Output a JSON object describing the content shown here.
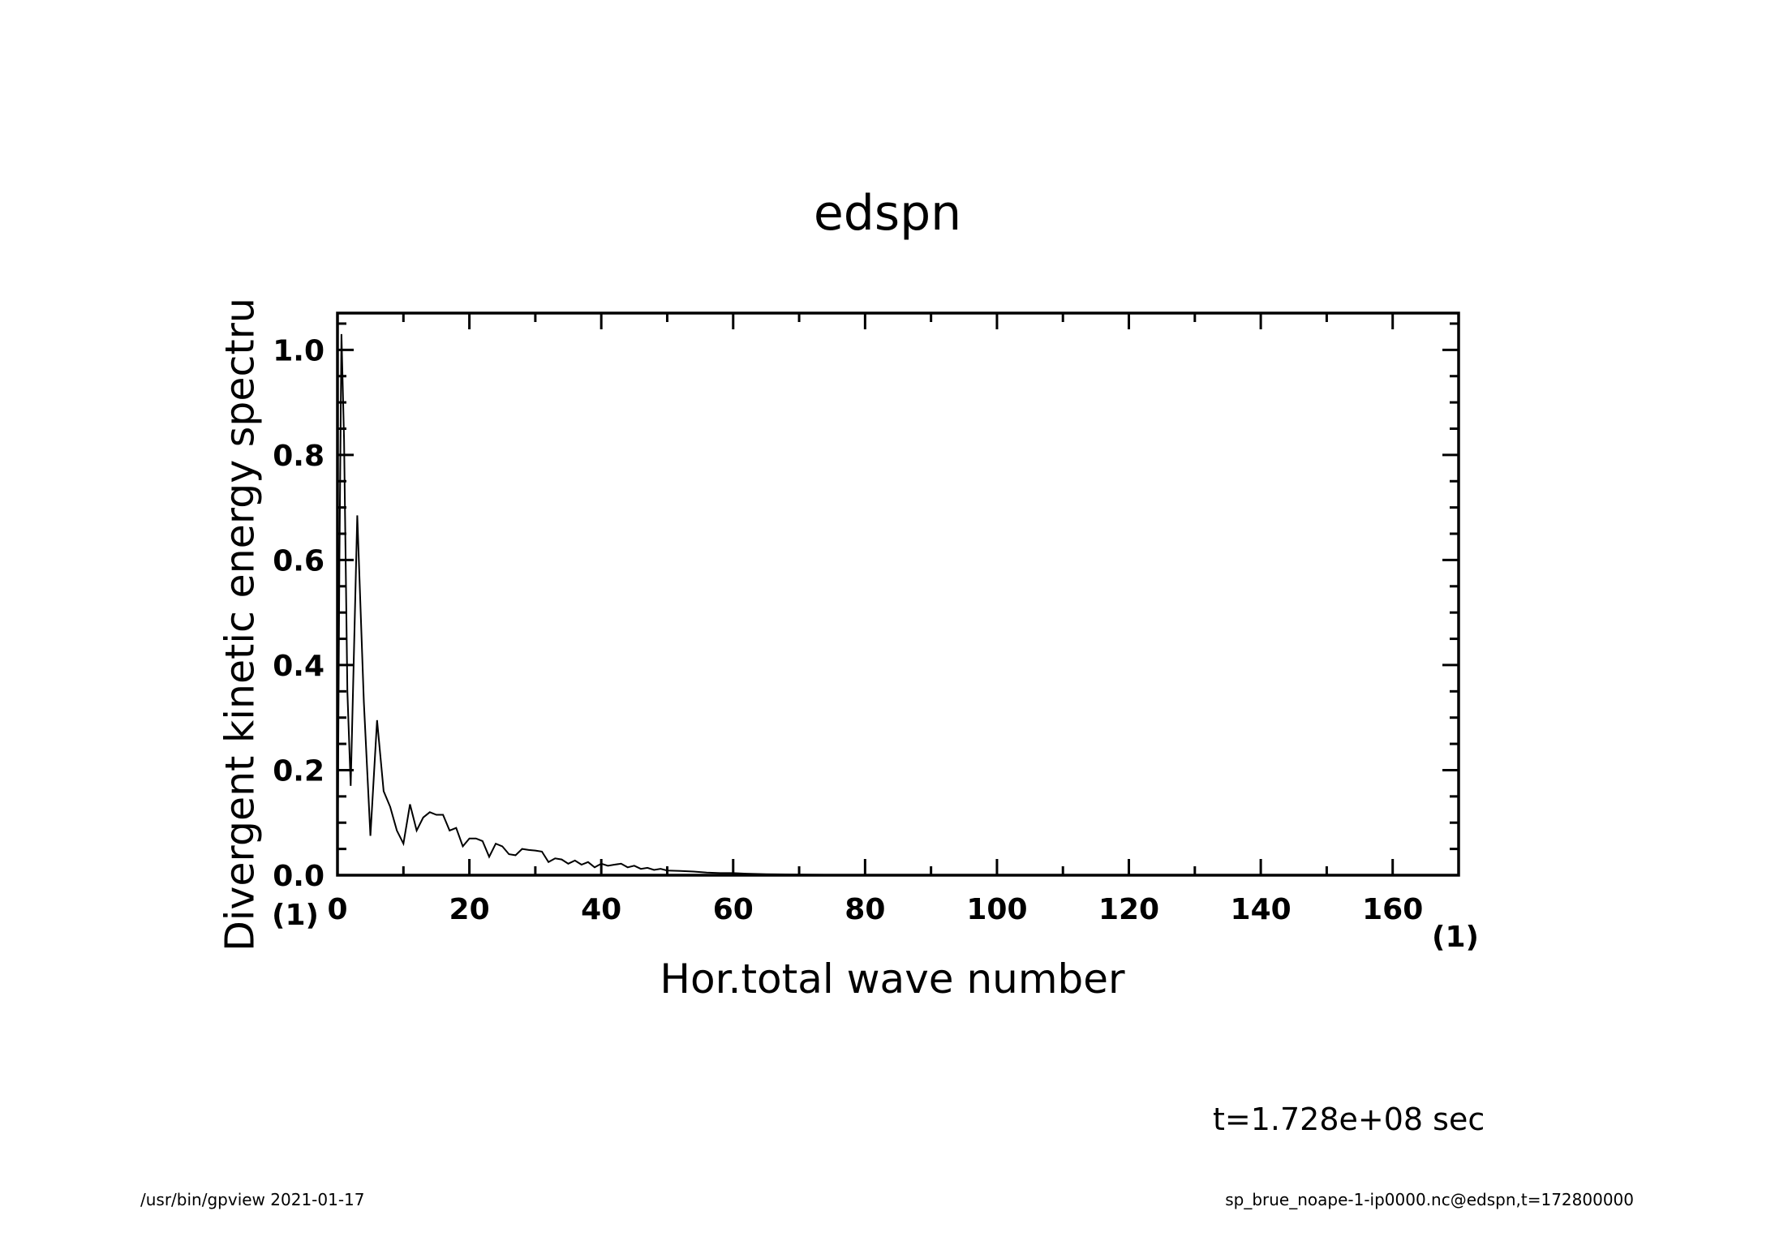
{
  "chart_data": {
    "type": "line",
    "title": "edspn",
    "xlabel": "Hor.total wave number",
    "ylabel": "Divergent kinetic energy spectru",
    "x_unit": "(1)",
    "y_unit": "(1)",
    "xlim": [
      0,
      170
    ],
    "ylim": [
      0,
      1.07
    ],
    "x_ticks": [
      0,
      20,
      40,
      60,
      80,
      100,
      120,
      140,
      160
    ],
    "x_tick_labels": [
      "0",
      "20",
      "40",
      "60",
      "80",
      "100",
      "120",
      "140",
      "160"
    ],
    "y_ticks": [
      0.0,
      0.2,
      0.4,
      0.6,
      0.8,
      1.0
    ],
    "y_tick_labels": [
      "0.0",
      "0.2",
      "0.4",
      "0.6",
      "0.8",
      "1.0"
    ],
    "grid": false,
    "line_color": "#000000",
    "x": [
      0,
      0.3,
      0.6,
      1,
      1.5,
      2,
      3,
      4,
      5,
      6,
      7,
      8,
      9,
      10,
      11,
      12,
      13,
      14,
      15,
      16,
      17,
      18,
      19,
      20,
      21,
      22,
      23,
      24,
      25,
      26,
      27,
      28,
      29,
      30,
      31,
      32,
      33,
      34,
      35,
      36,
      37,
      38,
      39,
      40,
      41,
      42,
      43,
      44,
      45,
      46,
      47,
      48,
      49,
      50,
      52,
      54,
      56,
      58,
      60,
      62,
      65,
      68,
      72,
      76,
      80,
      90,
      100,
      120,
      140,
      160,
      170
    ],
    "y": [
      0.0,
      0.6,
      1.03,
      0.83,
      0.35,
      0.17,
      0.685,
      0.33,
      0.075,
      0.295,
      0.16,
      0.13,
      0.085,
      0.06,
      0.135,
      0.085,
      0.11,
      0.12,
      0.115,
      0.115,
      0.085,
      0.09,
      0.055,
      0.07,
      0.07,
      0.065,
      0.035,
      0.06,
      0.055,
      0.04,
      0.038,
      0.05,
      0.048,
      0.047,
      0.045,
      0.025,
      0.032,
      0.03,
      0.022,
      0.028,
      0.02,
      0.025,
      0.015,
      0.022,
      0.018,
      0.02,
      0.022,
      0.015,
      0.018,
      0.012,
      0.014,
      0.01,
      0.012,
      0.009,
      0.008,
      0.007,
      0.005,
      0.004,
      0.004,
      0.003,
      0.002,
      0.0015,
      0.001,
      0.0006,
      0.0004,
      0.0002,
      0.0001,
      0.0,
      0.0,
      0.0,
      0.0
    ]
  },
  "annotation_time": "t=1.728e+08 sec",
  "footer": {
    "left": "/usr/bin/gpview   2021-01-17",
    "right": "sp_brue_noape-1-ip0000.nc@edspn,t=172800000"
  }
}
